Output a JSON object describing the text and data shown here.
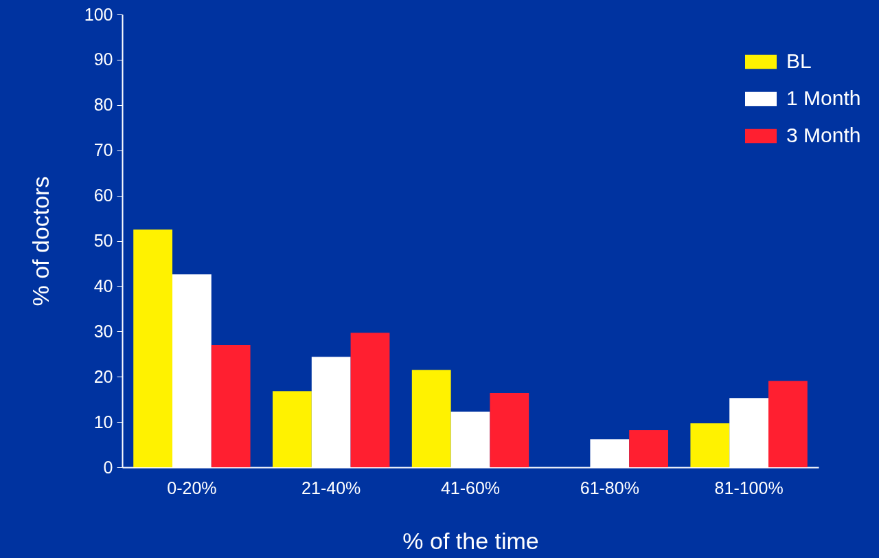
{
  "chart_data": {
    "type": "bar",
    "xlabel": "% of the time",
    "ylabel": "% of doctors",
    "categories": [
      "0-20%",
      "21-40%",
      "41-60%",
      "61-80%",
      "81-100%"
    ],
    "series": [
      {
        "name": "BL",
        "color": "#fff200",
        "values": [
          52.5,
          16.8,
          21.5,
          0,
          9.7
        ]
      },
      {
        "name": "1 Month",
        "color": "#ffffff",
        "values": [
          42.6,
          24.4,
          12.3,
          6.2,
          15.3
        ]
      },
      {
        "name": "3 Month",
        "color": "#ff1f30",
        "values": [
          27.0,
          29.7,
          16.4,
          8.2,
          19.1
        ]
      }
    ],
    "ylim": [
      0,
      100
    ],
    "yticks": [
      0,
      10,
      20,
      30,
      40,
      50,
      60,
      70,
      80,
      90,
      100
    ],
    "grid": false,
    "legend": "top right"
  }
}
